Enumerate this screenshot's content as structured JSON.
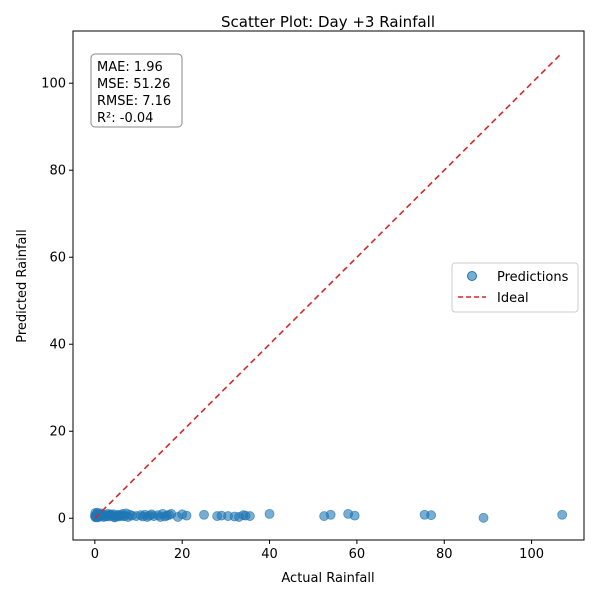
{
  "chart_data": {
    "type": "scatter",
    "title": "Scatter Plot: Day +3 Rainfall",
    "xlabel": "Actual Rainfall",
    "ylabel": "Predicted Rainfall",
    "xlim": [
      -5,
      112
    ],
    "ylim": [
      -5,
      112
    ],
    "xticks": [
      0,
      20,
      40,
      60,
      80,
      100
    ],
    "yticks": [
      0,
      20,
      40,
      60,
      80,
      100
    ],
    "grid": false,
    "legend_position": "center-right",
    "stats": [
      "MAE: 1.96",
      "MSE: 51.26",
      "RMSE: 7.16",
      "R²: -0.04"
    ],
    "series": [
      {
        "name": "Predictions",
        "color": "#1f77b4",
        "x": [
          0.0,
          0.1,
          0.2,
          0.3,
          0.5,
          0.7,
          1.0,
          1.2,
          1.5,
          1.8,
          2.0,
          2.3,
          2.6,
          3.0,
          3.3,
          3.6,
          4.0,
          4.3,
          4.7,
          5.0,
          5.3,
          5.6,
          6.0,
          6.4,
          6.8,
          7.2,
          7.6,
          8.0,
          8.5,
          9.5,
          10.5,
          11.0,
          11.5,
          12.0,
          12.5,
          13.0,
          13.5,
          14.5,
          15.0,
          15.5,
          16.0,
          16.5,
          17.0,
          17.5,
          19.0,
          20.0,
          21.0,
          25.0,
          28.0,
          29.0,
          30.5,
          32.0,
          33.0,
          34.0,
          34.5,
          35.5,
          40.0,
          52.5,
          54.0,
          58.0,
          59.5,
          75.5,
          77.0,
          89.0,
          107.0,
          0.2,
          0.4,
          0.6,
          1.1,
          2.5,
          3.5,
          4.5,
          5.5,
          6.5
        ],
        "y": [
          0.5,
          1.2,
          0.3,
          0.8,
          1.0,
          0.2,
          0.9,
          0.4,
          1.1,
          0.6,
          0.3,
          0.8,
          0.5,
          1.0,
          0.4,
          0.7,
          0.6,
          0.9,
          0.3,
          0.5,
          0.8,
          0.4,
          0.7,
          1.0,
          0.5,
          1.1,
          0.3,
          0.8,
          0.6,
          0.5,
          0.7,
          0.4,
          0.8,
          0.3,
          0.6,
          0.9,
          0.5,
          0.7,
          0.3,
          1.0,
          0.4,
          0.6,
          0.8,
          1.0,
          0.3,
          0.9,
          0.6,
          0.8,
          0.5,
          0.6,
          0.5,
          0.4,
          0.3,
          0.7,
          0.6,
          0.5,
          1.0,
          0.5,
          0.8,
          1.0,
          0.6,
          0.8,
          0.7,
          0.1,
          0.8,
          0.2,
          0.6,
          1.3,
          0.7,
          0.4,
          0.9,
          0.2,
          0.6,
          0.5
        ]
      },
      {
        "name": "Ideal",
        "color": "#d62728",
        "style": "dashed",
        "x": [
          0,
          107
        ],
        "y": [
          0,
          107
        ]
      }
    ]
  }
}
